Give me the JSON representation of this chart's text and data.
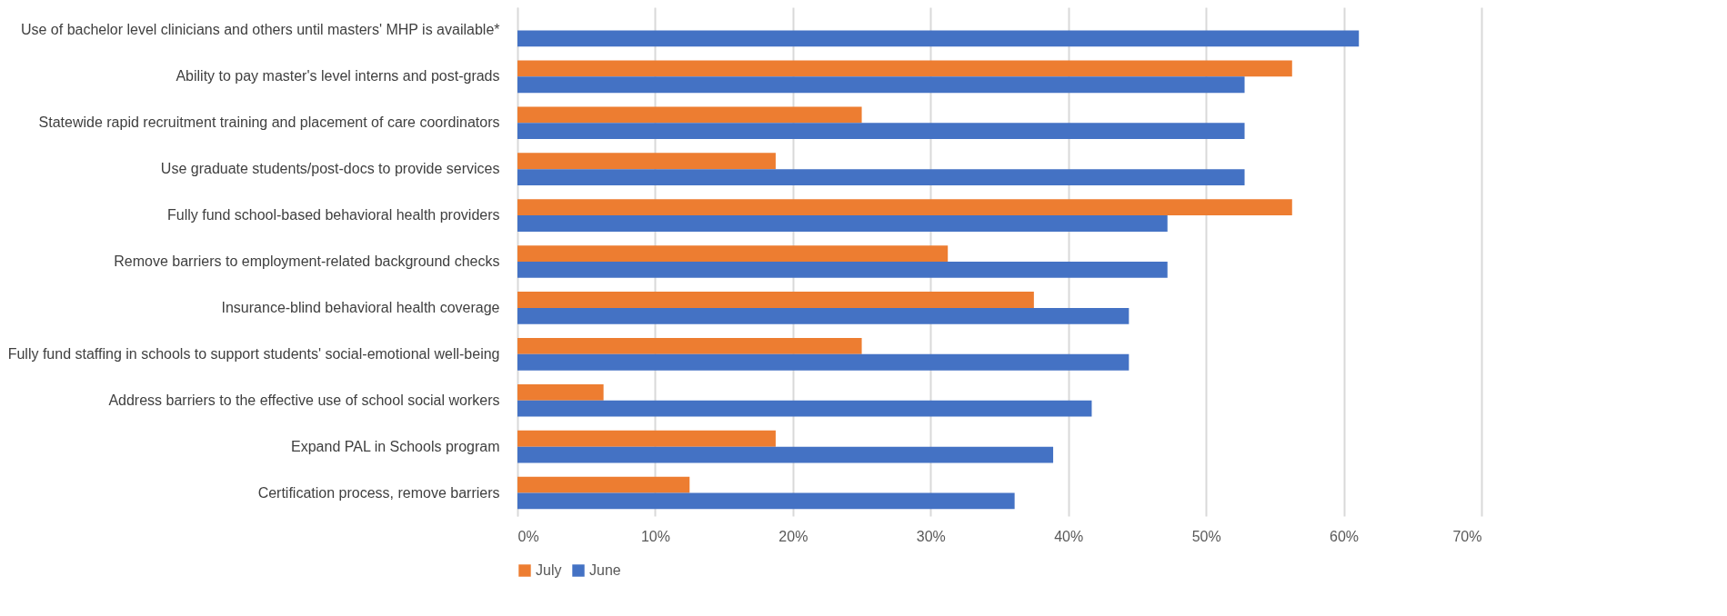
{
  "chart_data": {
    "type": "bar",
    "orientation": "horizontal",
    "categories": [
      "Use of bachelor level clinicians and others until masters' MHP is available*",
      "Ability to pay master's level interns and post-grads",
      "Statewide rapid recruitment training and placement of care coordinators",
      "Use graduate students/post-docs to provide services",
      "Fully fund school-based behavioral health providers",
      "Remove barriers to employment-related background checks",
      "Insurance-blind behavioral health coverage",
      "Fully fund staffing in schools to support students' social-emotional well-being",
      "Address barriers to the effective use of school social workers",
      "Expand PAL in Schools program",
      "Certification process, remove barriers"
    ],
    "series": [
      {
        "name": "July",
        "color": "#ed7d31",
        "values": [
          null,
          56.25,
          25,
          18.75,
          56.25,
          31.25,
          37.5,
          25,
          6.25,
          18.75,
          12.5
        ]
      },
      {
        "name": "June",
        "color": "#4472c4",
        "values": [
          61.1,
          52.8,
          52.8,
          52.8,
          47.2,
          47.2,
          44.4,
          44.4,
          41.7,
          38.9,
          36.1
        ]
      }
    ],
    "xlim": [
      0,
      70
    ],
    "xticks": [
      {
        "value": 0,
        "label": "0%"
      },
      {
        "value": 10,
        "label": "10%"
      },
      {
        "value": 20,
        "label": "20%"
      },
      {
        "value": 30,
        "label": "30%"
      },
      {
        "value": 40,
        "label": "40%"
      },
      {
        "value": 50,
        "label": "50%"
      },
      {
        "value": 60,
        "label": "60%"
      },
      {
        "value": 70,
        "label": "70%"
      }
    ],
    "grid": "x",
    "legend": "bottom"
  }
}
